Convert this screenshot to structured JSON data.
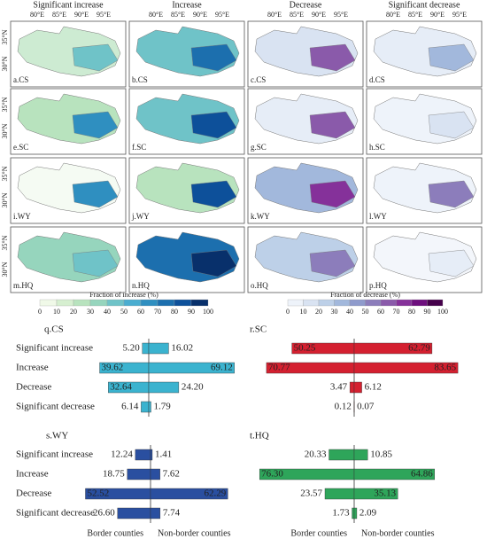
{
  "maps": {
    "columns": [
      "Significant increase",
      "Increase",
      "Decrease",
      "Significant decrease"
    ],
    "lon_labels": [
      "80°E",
      "85°E",
      "90°E",
      "95°E"
    ],
    "lat_labels": [
      "35°N",
      "30°N"
    ],
    "panels": [
      {
        "label": "a.CS",
        "color": "#cdebd2",
        "accent": "#6fc3c8"
      },
      {
        "label": "b.CS",
        "color": "#6fc3c8",
        "accent": "#1c6fae"
      },
      {
        "label": "c.CS",
        "color": "#d9e3f2",
        "accent": "#8a5aaa"
      },
      {
        "label": "d.CS",
        "color": "#e6edf7",
        "accent": "#a2b8dc"
      },
      {
        "label": "e.SC",
        "color": "#b8e3be",
        "accent": "#2f8fc0"
      },
      {
        "label": "f.SC",
        "color": "#6fc3c8",
        "accent": "#0d509a"
      },
      {
        "label": "g.SC",
        "color": "#e6edf7",
        "accent": "#8a5aaa"
      },
      {
        "label": "h.SC",
        "color": "#eef3fa",
        "accent": "#d9e3f2"
      },
      {
        "label": "i.WY",
        "color": "#f5fbf3",
        "accent": "#2f8fc0"
      },
      {
        "label": "j.WY",
        "color": "#b8e3be",
        "accent": "#0d509a"
      },
      {
        "label": "k.WY",
        "color": "#a2b8dc",
        "accent": "#85319a"
      },
      {
        "label": "l.WY",
        "color": "#eef3fa",
        "accent": "#8c7dbb"
      },
      {
        "label": "m.HQ",
        "color": "#96d5bd",
        "accent": "#6fc3c8"
      },
      {
        "label": "n.HQ",
        "color": "#1c6fae",
        "accent": "#08306b"
      },
      {
        "label": "o.HQ",
        "color": "#bdd0e8",
        "accent": "#8c7dbb"
      },
      {
        "label": "p.HQ",
        "color": "#f3f6fb",
        "accent": "#e6edf7"
      }
    ]
  },
  "legends": [
    {
      "title": "Fraction of increase (%)",
      "ticks": [
        0,
        10,
        20,
        30,
        40,
        50,
        60,
        70,
        80,
        90,
        100
      ],
      "colors": [
        "#f0f9e8",
        "#d6efd0",
        "#b8e3be",
        "#96d5bd",
        "#6fc3c8",
        "#4aadd0",
        "#2f8fc0",
        "#1c6fae",
        "#0d509a",
        "#08306b"
      ]
    },
    {
      "title": "Fraction of decrease (%)",
      "ticks": [
        0,
        10,
        20,
        30,
        40,
        50,
        60,
        70,
        80,
        90,
        100
      ],
      "colors": [
        "#eef3fa",
        "#d9e3f2",
        "#bdd0e8",
        "#a2b8dc",
        "#8f9bcc",
        "#8c7dbb",
        "#8a5aaa",
        "#85319a",
        "#6e0f7e",
        "#45004b"
      ]
    }
  ],
  "group_labels": [
    "Border counties",
    "Non-border counties"
  ],
  "chart_data": [
    {
      "type": "bar",
      "title": "q.CS",
      "color": "#3bb3cf",
      "categories": [
        "Significant increase",
        "Increase",
        "Decrease",
        "Significant decrease"
      ],
      "series": [
        {
          "values": [
            5.2,
            39.62,
            32.64,
            6.14
          ],
          "value_labels": [
            "5.20",
            "39.62",
            "32.64",
            "6.14"
          ]
        },
        {
          "values": [
            16.02,
            69.12,
            24.2,
            1.79
          ],
          "value_labels": [
            "16.02",
            "69.12",
            "24.20",
            "1.79"
          ]
        }
      ]
    },
    {
      "type": "bar",
      "title": "r.SC",
      "color": "#d42030",
      "series": [
        {
          "values": [
            50.25,
            70.77,
            3.47,
            0.12
          ],
          "value_labels": [
            "50.25",
            "70.77",
            "3.47",
            "0.12"
          ]
        },
        {
          "values": [
            62.79,
            83.65,
            6.12,
            0.07
          ],
          "value_labels": [
            "62.79",
            "83.65",
            "6.12",
            "0.07"
          ]
        }
      ]
    },
    {
      "type": "bar",
      "title": "s.WY",
      "color": "#2a4fa0",
      "categories": [
        "Significant increase",
        "Increase",
        "Decrease",
        "Significant decrease"
      ],
      "series": [
        {
          "values": [
            12.24,
            18.75,
            52.52,
            26.6
          ],
          "value_labels": [
            "12.24",
            "18.75",
            "52.52",
            "26.60"
          ]
        },
        {
          "values": [
            1.41,
            7.62,
            62.29,
            7.74
          ],
          "value_labels": [
            "1.41",
            "7.62",
            "62.29",
            "7.74"
          ]
        }
      ]
    },
    {
      "type": "bar",
      "title": "t.HQ",
      "color": "#2ea55a",
      "series": [
        {
          "values": [
            20.33,
            76.3,
            23.57,
            1.73
          ],
          "value_labels": [
            "20.33",
            "76.30",
            "23.57",
            "1.73"
          ]
        },
        {
          "values": [
            10.85,
            64.86,
            35.13,
            2.09
          ],
          "value_labels": [
            "10.85",
            "64.86",
            "35.13",
            "2.09"
          ]
        }
      ]
    }
  ]
}
